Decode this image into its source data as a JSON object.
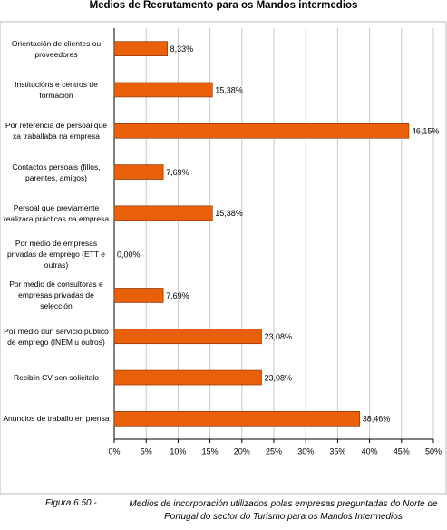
{
  "chart_data": {
    "type": "bar",
    "orientation": "horizontal",
    "title": "Medios de Recrutamento para os Mandos intermedios",
    "categories": [
      "Orientación de clientes ou proveedores",
      "Institucións e centros de formación",
      "Por referencia de persoal que xa traballaba na empresa",
      "Contactos persoais (fillos, parentes, amigos)",
      "Persoal que previamente realizara prácticas na empresa",
      "Por medio de empresas privadas de emprego (ETT e outras)",
      "Por medio de consultoras e empresas privadas de selección",
      "Por medio dun servicio público de emprego (INEM u outros)",
      "Recibín CV sen solicitalo",
      "Anuncios de traballo en prensa"
    ],
    "values": [
      8.33,
      15.38,
      46.15,
      7.69,
      15.38,
      0,
      7.69,
      23.08,
      23.08,
      38.46
    ],
    "value_labels": [
      "8,33%",
      "15,38%",
      "46,15%",
      "7,69%",
      "15,38%",
      "0,00%",
      "7,69%",
      "23,08%",
      "23,08%",
      "38,46%"
    ],
    "color": "#e8600a",
    "xlim": [
      0,
      50
    ],
    "xticks": [
      {
        "value": 0,
        "label": "0%"
      },
      {
        "value": 5,
        "label": "5%"
      },
      {
        "value": 10,
        "label": "10%"
      },
      {
        "value": 15,
        "label": "15%"
      },
      {
        "value": 20,
        "label": "20%"
      },
      {
        "value": 25,
        "label": "25%"
      },
      {
        "value": 30,
        "label": "30%"
      },
      {
        "value": 35,
        "label": "35%"
      },
      {
        "value": 40,
        "label": "40%"
      },
      {
        "value": 45,
        "label": "45%"
      },
      {
        "value": 50,
        "label": "50%"
      }
    ],
    "grid": true
  },
  "caption": {
    "figure": "Figura 6.50.-",
    "text": "Medios de incorporación utilizados polas empresas preguntadas do Norte de Portugal do sector do Turismo para os Mandos Intermedios"
  }
}
